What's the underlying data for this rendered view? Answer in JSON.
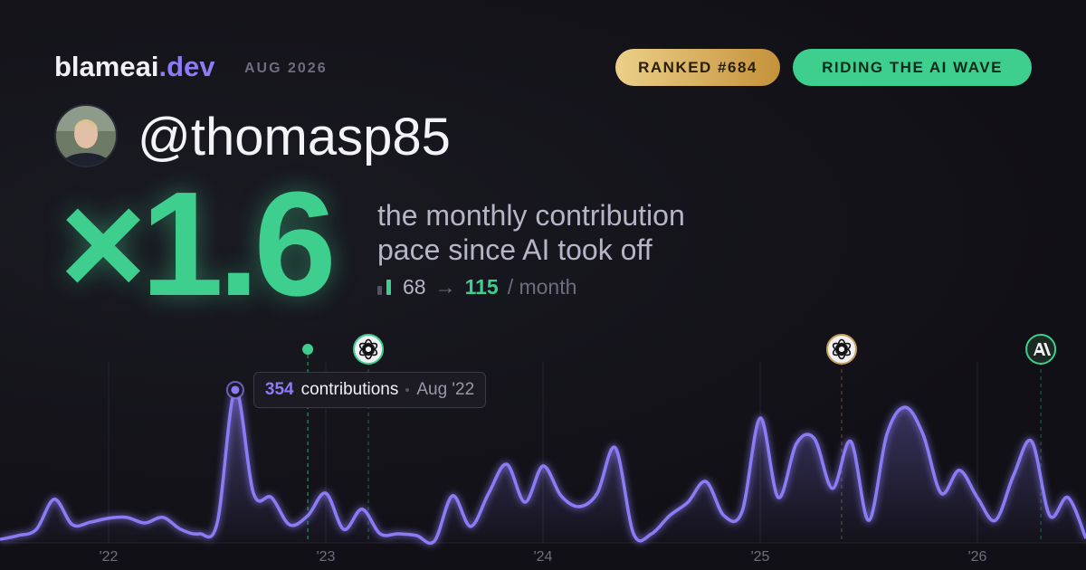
{
  "header": {
    "brand": "blameai",
    "brand_suffix": ".dev",
    "date": "AUG 2026",
    "badges": [
      "RANKED #684",
      "RIDING THE AI WAVE"
    ]
  },
  "profile": {
    "handle": "@thomasp85"
  },
  "headline": {
    "multiplier": "×1.6",
    "lines": [
      "the monthly contribution",
      "pace since AI took off"
    ]
  },
  "stats": {
    "before": "68",
    "arrow": "→",
    "after": "115",
    "unit": "/ month"
  },
  "chart_data": {
    "type": "area",
    "x": [
      2021.5,
      2021.583,
      2021.667,
      2021.75,
      2021.833,
      2021.917,
      2022,
      2022.083,
      2022.167,
      2022.25,
      2022.333,
      2022.417,
      2022.5,
      2022.583,
      2022.667,
      2022.75,
      2022.833,
      2022.917,
      2023,
      2023.083,
      2023.167,
      2023.25,
      2023.333,
      2023.417,
      2023.5,
      2023.583,
      2023.667,
      2023.75,
      2023.833,
      2023.917,
      2024,
      2024.083,
      2024.167,
      2024.25,
      2024.333,
      2024.417,
      2024.5,
      2024.583,
      2024.667,
      2024.75,
      2024.833,
      2024.917,
      2025,
      2025.083,
      2025.167,
      2025.25,
      2025.333,
      2025.417,
      2025.5,
      2025.583,
      2025.667,
      2025.75,
      2025.833,
      2025.917,
      2026,
      2026.083,
      2026.167,
      2026.25,
      2026.333,
      2026.417,
      2026.5
    ],
    "values": [
      8,
      17,
      31,
      101,
      42,
      48,
      57,
      59,
      46,
      59,
      31,
      21,
      46,
      354,
      115,
      105,
      42,
      63,
      115,
      31,
      78,
      21,
      21,
      17,
      4,
      109,
      38,
      115,
      182,
      94,
      178,
      109,
      84,
      115,
      220,
      21,
      21,
      63,
      94,
      142,
      63,
      73,
      289,
      105,
      230,
      241,
      126,
      235,
      52,
      251,
      314,
      251,
      115,
      168,
      105,
      52,
      157,
      235,
      63,
      105,
      10
    ],
    "color": "#8b7cf6",
    "xlim": [
      2021.5,
      2026.5
    ],
    "xticks": [
      {
        "value": 2022,
        "label": "'22"
      },
      {
        "value": 2023,
        "label": "'23"
      },
      {
        "value": 2024,
        "label": "'24"
      },
      {
        "value": 2025,
        "label": "'25"
      },
      {
        "value": 2026,
        "label": "'26"
      }
    ],
    "ylim": [
      0,
      400
    ],
    "grid": true,
    "events": [
      2022.917,
      2023.196,
      2025.375,
      2026.292
    ],
    "tooltip": {
      "unit": "contributions",
      "date": "Aug '22"
    }
  }
}
